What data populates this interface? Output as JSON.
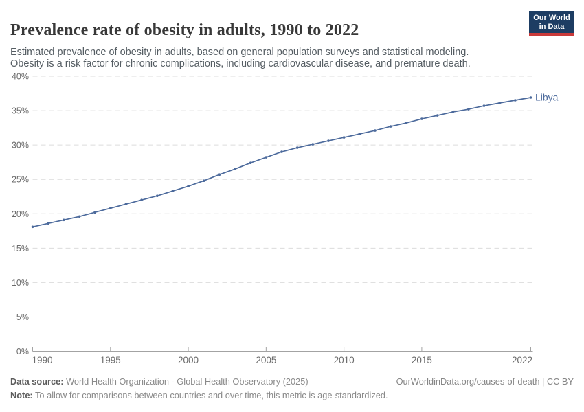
{
  "header": {
    "title": "Prevalence rate of obesity in adults, 1990 to 2022",
    "subtitle": "Estimated prevalence of obesity in adults, based on general population surveys and statistical modeling. Obesity is a risk factor for chronic complications, including cardiovascular disease, and premature death.",
    "logo": {
      "line1": "Our World",
      "line2": "in Data",
      "bg_color": "#1d3d63",
      "bar_color": "#c93a3a"
    }
  },
  "chart_data": {
    "type": "line",
    "title": "Prevalence rate of obesity in adults, 1990 to 2022",
    "xlabel": "",
    "ylabel": "",
    "xlim": [
      1990,
      2022
    ],
    "ylim": [
      0,
      40
    ],
    "grid": "horizontal-dashed",
    "legend_position": "end-of-line-label",
    "x": [
      1990,
      1991,
      1992,
      1993,
      1994,
      1995,
      1996,
      1997,
      1998,
      1999,
      2000,
      2001,
      2002,
      2003,
      2004,
      2005,
      2006,
      2007,
      2008,
      2009,
      2010,
      2011,
      2012,
      2013,
      2014,
      2015,
      2016,
      2017,
      2018,
      2019,
      2020,
      2021,
      2022
    ],
    "series": [
      {
        "name": "Libya",
        "color": "#4c6a9c",
        "values": [
          18.1,
          18.6,
          19.1,
          19.6,
          20.2,
          20.8,
          21.4,
          22.0,
          22.6,
          23.3,
          24.0,
          24.8,
          25.7,
          26.5,
          27.4,
          28.2,
          29.0,
          29.6,
          30.1,
          30.6,
          31.1,
          31.6,
          32.1,
          32.7,
          33.2,
          33.8,
          34.3,
          34.8,
          35.2,
          35.7,
          36.1,
          36.5,
          36.9
        ]
      }
    ],
    "yticks": [
      {
        "value": 0,
        "label": "0%"
      },
      {
        "value": 5,
        "label": "5%"
      },
      {
        "value": 10,
        "label": "10%"
      },
      {
        "value": 15,
        "label": "15%"
      },
      {
        "value": 20,
        "label": "20%"
      },
      {
        "value": 25,
        "label": "25%"
      },
      {
        "value": 30,
        "label": "30%"
      },
      {
        "value": 35,
        "label": "35%"
      },
      {
        "value": 40,
        "label": "40%"
      }
    ],
    "xticks": [
      {
        "value": 1990,
        "label": "1990"
      },
      {
        "value": 1995,
        "label": "1995"
      },
      {
        "value": 2000,
        "label": "2000"
      },
      {
        "value": 2005,
        "label": "2005"
      },
      {
        "value": 2010,
        "label": "2010"
      },
      {
        "value": 2015,
        "label": "2015"
      },
      {
        "value": 2022,
        "label": "2022"
      }
    ],
    "colors": {
      "gridline": "#dcdcdc",
      "axis": "#a3a3a3",
      "tick_label": "#6b6b6b"
    }
  },
  "footer": {
    "datasource_label": "Data source:",
    "datasource_text": " World Health Organization - Global Health Observatory (2025)",
    "link": "OurWorldinData.org/causes-of-death | CC BY",
    "note_label": "Note:",
    "note_text": " To allow for comparisons between countries and over time, this metric is age-standardized."
  }
}
